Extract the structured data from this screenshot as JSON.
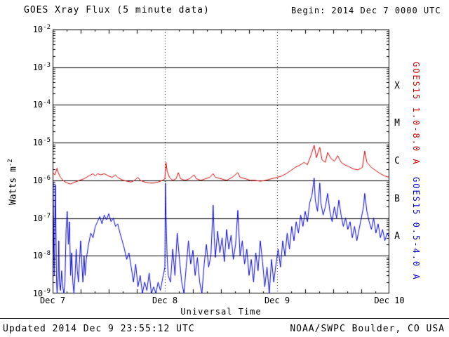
{
  "header": {
    "title": "GOES Xray Flux (5 minute data)",
    "begin_label": "Begin:",
    "begin_value": "2014 Dec 7 0000 UTC"
  },
  "axes": {
    "ylabel_base": "Watts m",
    "ylabel_exp": "-2",
    "xlabel": "Universal Time"
  },
  "footer": {
    "updated": "Updated 2014 Dec  9 23:55:12 UTC",
    "source": "NOAA/SWPC Boulder, CO USA"
  },
  "colors": {
    "long_channel": "#cc0000",
    "short_channel": "#0000cc",
    "grid": "#000000"
  },
  "chart_data": {
    "type": "line",
    "title": "GOES Xray Flux (5 minute data)",
    "xlabel": "Universal Time",
    "ylabel": "Watts m^-2",
    "x_range_days": [
      0,
      3
    ],
    "x_tick_labels": [
      "Dec 7",
      "Dec 8",
      "Dec 9",
      "Dec 10"
    ],
    "y_log_range": [
      -9,
      -2
    ],
    "y_tick_exponents": [
      -2,
      -3,
      -4,
      -5,
      -6,
      -7,
      -8,
      -9
    ],
    "grid": "decade-horizontal-solid, day-vertical-dotted",
    "legend_position": "right-rotated",
    "flare_classes": [
      {
        "label": "X",
        "log_center": -3.5
      },
      {
        "label": "M",
        "log_center": -4.5
      },
      {
        "label": "C",
        "log_center": -5.5
      },
      {
        "label": "B",
        "log_center": -6.5
      },
      {
        "label": "A",
        "log_center": -7.5
      }
    ],
    "series": [
      {
        "name": "GOES15 1.0-8.0 A",
        "color": "#cc0000",
        "points": [
          [
            0,
            1.6e-06
          ],
          [
            0.02,
            1.4e-06
          ],
          [
            0.04,
            2.1e-06
          ],
          [
            0.05,
            1.6e-06
          ],
          [
            0.07,
            1.2e-06
          ],
          [
            0.1,
            9.5e-07
          ],
          [
            0.13,
            8.5e-07
          ],
          [
            0.16,
            8e-07
          ],
          [
            0.2,
            9e-07
          ],
          [
            0.24,
            1e-06
          ],
          [
            0.28,
            1.1e-06
          ],
          [
            0.32,
            1.3e-06
          ],
          [
            0.36,
            1.5e-06
          ],
          [
            0.38,
            1.3e-06
          ],
          [
            0.4,
            1.5e-06
          ],
          [
            0.43,
            1.4e-06
          ],
          [
            0.46,
            1.5e-06
          ],
          [
            0.5,
            1.3e-06
          ],
          [
            0.53,
            1.2e-06
          ],
          [
            0.56,
            1.4e-06
          ],
          [
            0.58,
            1.2e-06
          ],
          [
            0.6,
            1.1e-06
          ],
          [
            0.63,
            1e-06
          ],
          [
            0.66,
            9.5e-07
          ],
          [
            0.7,
            9e-07
          ],
          [
            0.73,
            1e-06
          ],
          [
            0.76,
            1.2e-06
          ],
          [
            0.78,
            1e-06
          ],
          [
            0.82,
            9e-07
          ],
          [
            0.86,
            8.5e-07
          ],
          [
            0.9,
            8.5e-07
          ],
          [
            0.94,
            9e-07
          ],
          [
            0.98,
            1e-06
          ],
          [
            1.0,
            1.1e-06
          ],
          [
            1.01,
            3e-06
          ],
          [
            1.02,
            1.8e-06
          ],
          [
            1.04,
            1.2e-06
          ],
          [
            1.07,
            1e-06
          ],
          [
            1.1,
            1.1e-06
          ],
          [
            1.12,
            1.6e-06
          ],
          [
            1.14,
            1.1e-06
          ],
          [
            1.18,
            1e-06
          ],
          [
            1.22,
            1.1e-06
          ],
          [
            1.26,
            1.4e-06
          ],
          [
            1.28,
            1.1e-06
          ],
          [
            1.32,
            1e-06
          ],
          [
            1.36,
            1.1e-06
          ],
          [
            1.4,
            1.2e-06
          ],
          [
            1.43,
            1.5e-06
          ],
          [
            1.45,
            1.2e-06
          ],
          [
            1.5,
            1.1e-06
          ],
          [
            1.55,
            1e-06
          ],
          [
            1.6,
            1.2e-06
          ],
          [
            1.65,
            1.6e-06
          ],
          [
            1.67,
            1.2e-06
          ],
          [
            1.72,
            1.1e-06
          ],
          [
            1.76,
            1e-06
          ],
          [
            1.8,
            1e-06
          ],
          [
            1.85,
            9.5e-07
          ],
          [
            1.9,
            1e-06
          ],
          [
            1.95,
            1.1e-06
          ],
          [
            2.0,
            1.2e-06
          ],
          [
            2.04,
            1.3e-06
          ],
          [
            2.08,
            1.5e-06
          ],
          [
            2.12,
            1.8e-06
          ],
          [
            2.16,
            2.2e-06
          ],
          [
            2.2,
            2.5e-06
          ],
          [
            2.24,
            3e-06
          ],
          [
            2.27,
            2.6e-06
          ],
          [
            2.3,
            4.5e-06
          ],
          [
            2.33,
            8.5e-06
          ],
          [
            2.35,
            4e-06
          ],
          [
            2.38,
            7.5e-06
          ],
          [
            2.4,
            3.5e-06
          ],
          [
            2.43,
            3e-06
          ],
          [
            2.45,
            5.5e-06
          ],
          [
            2.48,
            3.8e-06
          ],
          [
            2.51,
            3.2e-06
          ],
          [
            2.54,
            4.5e-06
          ],
          [
            2.57,
            3e-06
          ],
          [
            2.6,
            2.6e-06
          ],
          [
            2.64,
            2.3e-06
          ],
          [
            2.68,
            2e-06
          ],
          [
            2.72,
            1.9e-06
          ],
          [
            2.76,
            2.2e-06
          ],
          [
            2.78,
            6e-06
          ],
          [
            2.8,
            3e-06
          ],
          [
            2.84,
            2.2e-06
          ],
          [
            2.88,
            1.8e-06
          ],
          [
            2.92,
            1.5e-06
          ],
          [
            2.96,
            1.3e-06
          ],
          [
            3.0,
            1.2e-06
          ]
        ]
      },
      {
        "name": "GOES15 0.5-4.0 A",
        "color": "#0000cc",
        "points": [
          [
            0,
            1.2e-07
          ],
          [
            0.005,
            9e-07
          ],
          [
            0.01,
            1.5e-08
          ],
          [
            0.015,
            3e-09
          ],
          [
            0.02,
            6e-08
          ],
          [
            0.025,
            7.5e-07
          ],
          [
            0.03,
            4e-08
          ],
          [
            0.035,
            2e-09
          ],
          [
            0.04,
            1e-09
          ],
          [
            0.05,
            3e-09
          ],
          [
            0.055,
            2.5e-08
          ],
          [
            0.06,
            2e-09
          ],
          [
            0.07,
            1.2e-09
          ],
          [
            0.08,
            4e-09
          ],
          [
            0.09,
            1.5e-09
          ],
          [
            0.1,
            1e-09
          ],
          [
            0.11,
            2e-09
          ],
          [
            0.12,
            5e-08
          ],
          [
            0.13,
            1.5e-07
          ],
          [
            0.14,
            2e-08
          ],
          [
            0.15,
            8e-08
          ],
          [
            0.16,
            3e-09
          ],
          [
            0.17,
            1.2e-08
          ],
          [
            0.18,
            2e-09
          ],
          [
            0.19,
            1e-09
          ],
          [
            0.2,
            3e-09
          ],
          [
            0.21,
            1.5e-08
          ],
          [
            0.22,
            4e-09
          ],
          [
            0.23,
            2e-09
          ],
          [
            0.24,
            8e-09
          ],
          [
            0.25,
            2.5e-08
          ],
          [
            0.26,
            6e-09
          ],
          [
            0.27,
            2e-09
          ],
          [
            0.28,
            1e-08
          ],
          [
            0.29,
            3e-09
          ],
          [
            0.3,
            8e-09
          ],
          [
            0.32,
            2e-08
          ],
          [
            0.34,
            4e-08
          ],
          [
            0.36,
            3e-08
          ],
          [
            0.38,
            6e-08
          ],
          [
            0.4,
            8e-08
          ],
          [
            0.42,
            1.1e-07
          ],
          [
            0.44,
            7e-08
          ],
          [
            0.46,
            1.2e-07
          ],
          [
            0.48,
            9e-08
          ],
          [
            0.5,
            1.3e-07
          ],
          [
            0.52,
            8e-08
          ],
          [
            0.54,
            1e-07
          ],
          [
            0.56,
            6e-08
          ],
          [
            0.58,
            7e-08
          ],
          [
            0.6,
            4e-08
          ],
          [
            0.62,
            2.5e-08
          ],
          [
            0.64,
            1.5e-08
          ],
          [
            0.66,
            8e-09
          ],
          [
            0.68,
            1.2e-08
          ],
          [
            0.7,
            5e-09
          ],
          [
            0.72,
            2e-09
          ],
          [
            0.74,
            6e-09
          ],
          [
            0.76,
            1.5e-09
          ],
          [
            0.78,
            3e-09
          ],
          [
            0.8,
            1e-09
          ],
          [
            0.82,
            2e-09
          ],
          [
            0.84,
            1.2e-09
          ],
          [
            0.86,
            3.5e-09
          ],
          [
            0.88,
            1e-09
          ],
          [
            0.9,
            1.5e-09
          ],
          [
            0.92,
            1e-09
          ],
          [
            0.94,
            2e-09
          ],
          [
            0.96,
            1.2e-09
          ],
          [
            0.98,
            2.5e-09
          ],
          [
            1.0,
            5e-09
          ],
          [
            1.005,
            8.5e-07
          ],
          [
            1.01,
            1.2e-07
          ],
          [
            1.02,
            1e-08
          ],
          [
            1.03,
            3e-09
          ],
          [
            1.05,
            2e-09
          ],
          [
            1.07,
            1.5e-08
          ],
          [
            1.09,
            3e-09
          ],
          [
            1.11,
            4e-08
          ],
          [
            1.13,
            8e-09
          ],
          [
            1.15,
            2e-09
          ],
          [
            1.17,
            1e-09
          ],
          [
            1.19,
            5e-09
          ],
          [
            1.21,
            2.5e-08
          ],
          [
            1.23,
            6e-09
          ],
          [
            1.25,
            1.4e-08
          ],
          [
            1.27,
            3e-09
          ],
          [
            1.29,
            9e-09
          ],
          [
            1.31,
            2e-09
          ],
          [
            1.33,
            1e-09
          ],
          [
            1.35,
            6e-09
          ],
          [
            1.37,
            2e-08
          ],
          [
            1.39,
            5e-09
          ],
          [
            1.41,
            1e-08
          ],
          [
            1.43,
            2.2e-07
          ],
          [
            1.44,
            3e-08
          ],
          [
            1.45,
            9e-09
          ],
          [
            1.47,
            4.5e-08
          ],
          [
            1.49,
            1.2e-08
          ],
          [
            1.51,
            3e-08
          ],
          [
            1.53,
            7e-09
          ],
          [
            1.55,
            5e-08
          ],
          [
            1.57,
            1.5e-08
          ],
          [
            1.59,
            3.5e-08
          ],
          [
            1.61,
            8e-09
          ],
          [
            1.63,
            2e-08
          ],
          [
            1.65,
            1.6e-07
          ],
          [
            1.66,
            4e-08
          ],
          [
            1.67,
            1e-08
          ],
          [
            1.69,
            2.5e-08
          ],
          [
            1.71,
            6e-09
          ],
          [
            1.73,
            1.5e-08
          ],
          [
            1.75,
            3e-09
          ],
          [
            1.77,
            8e-09
          ],
          [
            1.79,
            2e-09
          ],
          [
            1.81,
            1.2e-08
          ],
          [
            1.83,
            4e-09
          ],
          [
            1.85,
            2.5e-08
          ],
          [
            1.87,
            7e-09
          ],
          [
            1.89,
            1.5e-09
          ],
          [
            1.91,
            5e-09
          ],
          [
            1.93,
            1e-09
          ],
          [
            1.95,
            8e-09
          ],
          [
            1.97,
            2e-09
          ],
          [
            1.99,
            6e-09
          ],
          [
            2.01,
            1.5e-08
          ],
          [
            2.03,
            5e-09
          ],
          [
            2.05,
            2.5e-08
          ],
          [
            2.07,
            1e-08
          ],
          [
            2.09,
            4e-08
          ],
          [
            2.11,
            1.5e-08
          ],
          [
            2.13,
            6e-08
          ],
          [
            2.15,
            2.5e-08
          ],
          [
            2.17,
            8e-08
          ],
          [
            2.19,
            4e-08
          ],
          [
            2.21,
            1.2e-07
          ],
          [
            2.23,
            6e-08
          ],
          [
            2.25,
            1.5e-07
          ],
          [
            2.27,
            8e-08
          ],
          [
            2.29,
            2.5e-07
          ],
          [
            2.31,
            4e-07
          ],
          [
            2.33,
            1.15e-06
          ],
          [
            2.34,
            3e-07
          ],
          [
            2.36,
            1.5e-07
          ],
          [
            2.38,
            8.5e-07
          ],
          [
            2.39,
            2.5e-07
          ],
          [
            2.41,
            1.2e-07
          ],
          [
            2.43,
            2e-07
          ],
          [
            2.45,
            4.5e-07
          ],
          [
            2.47,
            1.5e-07
          ],
          [
            2.49,
            8e-08
          ],
          [
            2.51,
            2e-07
          ],
          [
            2.53,
            1e-07
          ],
          [
            2.55,
            3e-07
          ],
          [
            2.57,
            1.2e-07
          ],
          [
            2.59,
            6e-08
          ],
          [
            2.61,
            1e-07
          ],
          [
            2.63,
            5e-08
          ],
          [
            2.65,
            8e-08
          ],
          [
            2.67,
            3e-08
          ],
          [
            2.69,
            6e-08
          ],
          [
            2.71,
            2.5e-08
          ],
          [
            2.73,
            5e-08
          ],
          [
            2.75,
            1e-07
          ],
          [
            2.77,
            2e-07
          ],
          [
            2.78,
            4.5e-07
          ],
          [
            2.8,
            1.5e-07
          ],
          [
            2.82,
            8e-08
          ],
          [
            2.84,
            5e-08
          ],
          [
            2.86,
            1e-07
          ],
          [
            2.88,
            4e-08
          ],
          [
            2.9,
            7e-08
          ],
          [
            2.92,
            3e-08
          ],
          [
            2.94,
            5e-08
          ],
          [
            2.96,
            2.5e-08
          ],
          [
            2.98,
            4e-08
          ],
          [
            3.0,
            3e-08
          ]
        ]
      }
    ]
  }
}
